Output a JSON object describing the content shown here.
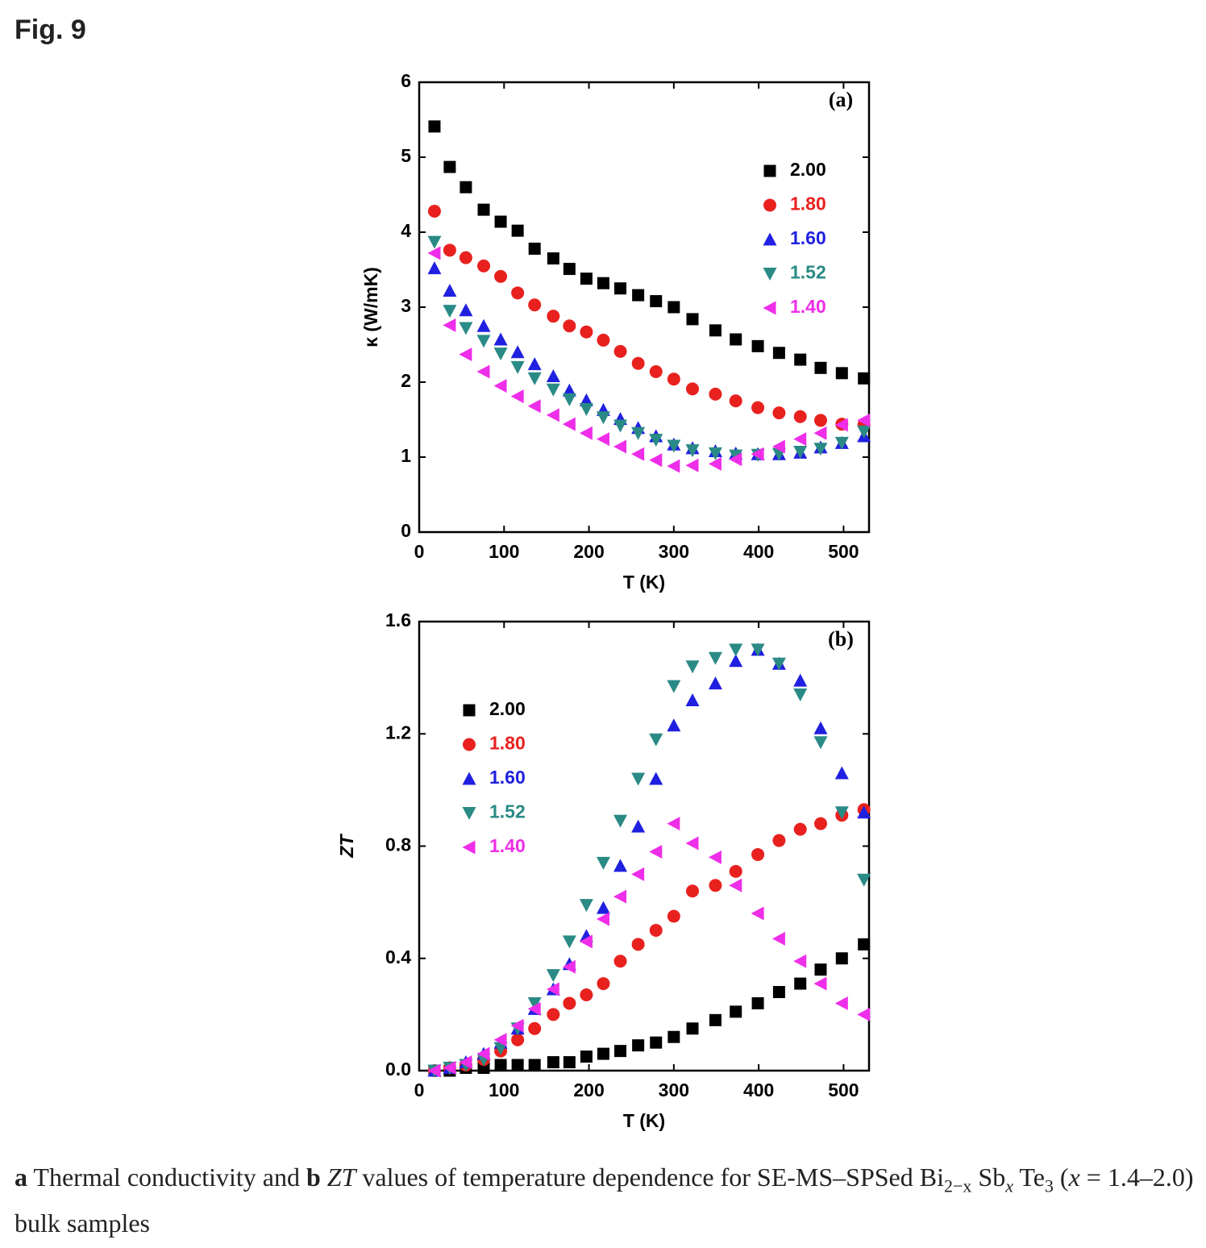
{
  "figure_label": "Fig. 9",
  "caption": [
    "a",
    " Thermal conductivity and ",
    "b",
    " ",
    "ZT",
    " values of temperature dependence for SE-MS–SPSed Bi",
    "2−x",
    " Sb",
    "x",
    " Te",
    "3",
    " (",
    "x",
    " = 1.4–2.0) bulk samples"
  ],
  "chart_data": [
    {
      "type": "scatter",
      "panel_label": "(a)",
      "xlabel": "T (K)",
      "ylabel": "κ (W/mK)",
      "xlim": [
        0,
        530
      ],
      "ylim": [
        0,
        6
      ],
      "xticks": [
        0,
        100,
        200,
        300,
        400,
        500
      ],
      "yticks": [
        0,
        1,
        2,
        3,
        4,
        5,
        6
      ],
      "legend_loc": "upper right",
      "x": [
        18,
        36,
        55,
        76,
        96,
        116,
        136,
        158,
        177,
        197,
        217,
        237,
        258,
        279,
        300,
        322,
        349,
        373,
        399,
        424,
        449,
        473,
        498,
        524
      ],
      "series": [
        {
          "name": "2.00",
          "color": "#000000",
          "marker": "square",
          "values": [
            5.41,
            4.87,
            4.6,
            4.3,
            4.14,
            4.02,
            3.78,
            3.65,
            3.51,
            3.38,
            3.32,
            3.25,
            3.16,
            3.08,
            3.0,
            2.84,
            2.69,
            2.57,
            2.48,
            2.39,
            2.3,
            2.19,
            2.12,
            2.05
          ]
        },
        {
          "name": "1.80",
          "color": "#e8211f",
          "marker": "circle",
          "values": [
            4.28,
            3.76,
            3.66,
            3.55,
            3.41,
            3.19,
            3.03,
            2.88,
            2.75,
            2.67,
            2.56,
            2.41,
            2.25,
            2.14,
            2.04,
            1.91,
            1.84,
            1.75,
            1.66,
            1.59,
            1.54,
            1.49,
            1.44,
            1.43
          ]
        },
        {
          "name": "1.60",
          "color": "#2020e0",
          "marker": "triangle-up",
          "values": [
            3.52,
            3.22,
            2.96,
            2.75,
            2.57,
            2.4,
            2.24,
            2.08,
            1.89,
            1.76,
            1.63,
            1.51,
            1.39,
            1.28,
            1.17,
            1.12,
            1.08,
            1.05,
            1.04,
            1.04,
            1.06,
            1.13,
            1.19,
            1.28
          ]
        },
        {
          "name": "1.52",
          "color": "#2a8a85",
          "marker": "triangle-down",
          "values": [
            3.87,
            2.95,
            2.72,
            2.55,
            2.38,
            2.2,
            2.05,
            1.9,
            1.77,
            1.64,
            1.53,
            1.42,
            1.32,
            1.23,
            1.15,
            1.09,
            1.05,
            1.02,
            1.03,
            1.04,
            1.07,
            1.11,
            1.19,
            1.34
          ]
        },
        {
          "name": "1.40",
          "color": "#ee2ee8",
          "marker": "triangle-left",
          "values": [
            3.72,
            2.76,
            2.37,
            2.14,
            1.95,
            1.81,
            1.68,
            1.56,
            1.44,
            1.32,
            1.24,
            1.14,
            1.04,
            0.96,
            0.88,
            0.89,
            0.91,
            0.97,
            1.04,
            1.14,
            1.24,
            1.32,
            1.43,
            1.49
          ]
        }
      ]
    },
    {
      "type": "scatter",
      "panel_label": "(b)",
      "xlabel": "T (K)",
      "ylabel": "ZT",
      "xlim": [
        0,
        530
      ],
      "ylim": [
        0,
        1.6
      ],
      "xticks": [
        0,
        100,
        200,
        300,
        400,
        500
      ],
      "yticks": [
        {
          "value": 0,
          "label": "0.0"
        },
        0.4,
        0.8,
        1.2,
        1.6
      ],
      "legend_loc": "upper left",
      "x": [
        18,
        36,
        55,
        76,
        96,
        116,
        136,
        158,
        177,
        197,
        217,
        237,
        258,
        279,
        300,
        322,
        349,
        373,
        399,
        424,
        449,
        473,
        498,
        524
      ],
      "series": [
        {
          "name": "2.00",
          "color": "#000000",
          "marker": "square",
          "values": [
            0.0,
            0.0,
            0.01,
            0.01,
            0.02,
            0.02,
            0.02,
            0.03,
            0.03,
            0.05,
            0.06,
            0.07,
            0.09,
            0.1,
            0.12,
            0.15,
            0.18,
            0.21,
            0.24,
            0.28,
            0.31,
            0.36,
            0.4,
            0.45
          ]
        },
        {
          "name": "1.80",
          "color": "#e8211f",
          "marker": "circle",
          "values": [
            0.0,
            0.01,
            0.02,
            0.04,
            0.07,
            0.11,
            0.15,
            0.2,
            0.24,
            0.27,
            0.31,
            0.39,
            0.45,
            0.5,
            0.55,
            0.64,
            0.66,
            0.71,
            0.77,
            0.82,
            0.86,
            0.88,
            0.91,
            0.93
          ]
        },
        {
          "name": "1.60",
          "color": "#2020e0",
          "marker": "triangle-up",
          "values": [
            0.0,
            0.01,
            0.03,
            0.06,
            0.1,
            0.15,
            0.22,
            0.29,
            0.38,
            0.48,
            0.58,
            0.73,
            0.87,
            1.04,
            1.23,
            1.32,
            1.38,
            1.46,
            1.5,
            1.45,
            1.39,
            1.22,
            1.06,
            0.92
          ]
        },
        {
          "name": "1.52",
          "color": "#2a8a85",
          "marker": "triangle-down",
          "values": [
            0.0,
            0.01,
            0.02,
            0.04,
            0.08,
            0.15,
            0.24,
            0.34,
            0.46,
            0.59,
            0.74,
            0.89,
            1.04,
            1.18,
            1.37,
            1.44,
            1.47,
            1.5,
            1.5,
            1.45,
            1.34,
            1.17,
            0.92,
            0.68
          ]
        },
        {
          "name": "1.40",
          "color": "#ee2ee8",
          "marker": "triangle-left",
          "values": [
            0.0,
            0.01,
            0.03,
            0.06,
            0.11,
            0.16,
            0.22,
            0.29,
            0.37,
            0.46,
            0.54,
            0.62,
            0.7,
            0.78,
            0.88,
            0.81,
            0.76,
            0.66,
            0.56,
            0.47,
            0.39,
            0.31,
            0.24,
            0.2
          ]
        }
      ]
    }
  ]
}
